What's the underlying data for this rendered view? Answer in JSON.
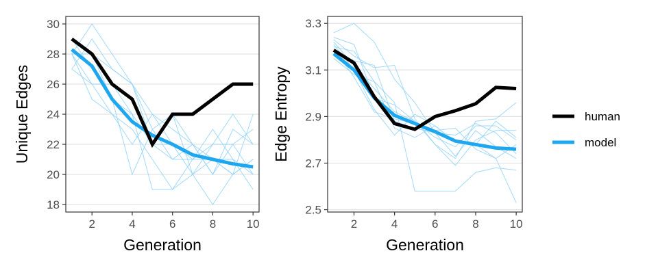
{
  "chart_data": [
    {
      "type": "line",
      "xlabel": "Generation",
      "ylabel": "Unique Edges",
      "xlim": [
        0.7,
        10.3
      ],
      "ylim": [
        17.5,
        30.5
      ],
      "xticks": [
        2,
        4,
        6,
        8,
        10
      ],
      "yticks": [
        18,
        20,
        22,
        24,
        26,
        28,
        30
      ],
      "grid": "horizontal",
      "series": [
        {
          "name": "human",
          "x": [
            1,
            2,
            3,
            4,
            5,
            6,
            7,
            8,
            9,
            10
          ],
          "values": [
            29,
            28,
            26,
            25,
            22,
            24,
            24,
            25,
            26,
            26
          ]
        },
        {
          "name": "model",
          "x": [
            1,
            2,
            3,
            4,
            5,
            6,
            7,
            8,
            9,
            10
          ],
          "values": [
            28.3,
            27.2,
            25.0,
            23.5,
            22.6,
            22.0,
            21.3,
            21.0,
            20.7,
            20.5
          ]
        }
      ],
      "runs": [
        [
          27,
          29,
          27,
          26,
          22,
          22,
          20,
          21,
          20,
          21
        ],
        [
          28,
          30,
          28,
          26,
          23,
          24,
          22,
          21,
          21,
          20
        ],
        [
          29,
          27,
          25,
          20,
          23,
          21,
          22,
          20,
          22,
          20
        ],
        [
          28,
          26,
          24,
          23,
          21,
          19,
          21,
          23,
          21,
          19
        ],
        [
          29,
          28,
          27,
          26,
          24,
          23,
          22,
          20,
          23,
          22
        ],
        [
          28,
          28,
          26,
          24,
          19,
          19,
          20,
          18,
          20,
          21
        ],
        [
          27,
          26,
          26,
          25,
          22,
          21,
          21,
          22,
          22,
          23
        ],
        [
          28,
          25,
          24,
          22,
          24,
          22,
          21,
          21,
          20,
          24
        ],
        [
          29,
          28,
          25,
          24,
          22,
          24,
          20,
          22,
          24,
          22
        ]
      ]
    },
    {
      "type": "line",
      "xlabel": "Generation",
      "ylabel": "Edge Entropy",
      "xlim": [
        0.7,
        10.3
      ],
      "ylim": [
        2.49,
        3.33
      ],
      "xticks": [
        2,
        4,
        6,
        8,
        10
      ],
      "yticks": [
        2.5,
        2.7,
        2.9,
        3.1,
        3.3
      ],
      "grid": "horizontal",
      "series": [
        {
          "name": "human",
          "x": [
            1,
            2,
            3,
            4,
            5,
            6,
            7,
            8,
            9,
            10
          ],
          "values": [
            3.185,
            3.13,
            2.985,
            2.87,
            2.845,
            2.9,
            2.925,
            2.955,
            3.025,
            3.02
          ]
        },
        {
          "name": "model",
          "x": [
            1,
            2,
            3,
            4,
            5,
            6,
            7,
            8,
            9,
            10
          ],
          "values": [
            3.17,
            3.1,
            2.98,
            2.905,
            2.87,
            2.835,
            2.795,
            2.78,
            2.765,
            2.76
          ]
        }
      ],
      "runs": [
        [
          3.26,
          3.3,
          3.22,
          3.06,
          2.96,
          2.83,
          2.82,
          2.87,
          2.83,
          2.74
        ],
        [
          3.18,
          3.14,
          3.12,
          2.88,
          2.85,
          2.83,
          2.73,
          2.84,
          2.77,
          2.72
        ],
        [
          3.21,
          3.1,
          2.93,
          2.82,
          2.91,
          2.86,
          2.79,
          2.78,
          2.72,
          2.78
        ],
        [
          3.23,
          3.16,
          3.11,
          3.12,
          2.89,
          2.78,
          2.72,
          2.88,
          2.89,
          2.96
        ],
        [
          3.15,
          3.08,
          3.05,
          2.96,
          2.58,
          2.58,
          2.58,
          2.66,
          2.68,
          2.67
        ],
        [
          3.24,
          3.21,
          2.98,
          2.95,
          2.88,
          2.78,
          2.69,
          2.8,
          2.84,
          2.84
        ],
        [
          3.19,
          3.07,
          2.92,
          2.89,
          2.87,
          2.84,
          2.85,
          2.76,
          2.72,
          2.53
        ],
        [
          3.2,
          3.18,
          3.05,
          2.85,
          2.81,
          2.86,
          2.79,
          2.78,
          2.88,
          2.81
        ],
        [
          3.22,
          3.12,
          3.02,
          2.92,
          2.88,
          2.81,
          2.77,
          2.86,
          2.86,
          2.8
        ]
      ]
    }
  ],
  "legend": {
    "position": "right",
    "items": [
      {
        "label": "human",
        "color": "#000000"
      },
      {
        "label": "model",
        "color": "#1ea7ee"
      }
    ]
  },
  "colors": {
    "human": "#000000",
    "model": "#1ea7ee",
    "runs": "#8fd2f7",
    "grid": "#e3e3e3",
    "axis": "#333333"
  }
}
